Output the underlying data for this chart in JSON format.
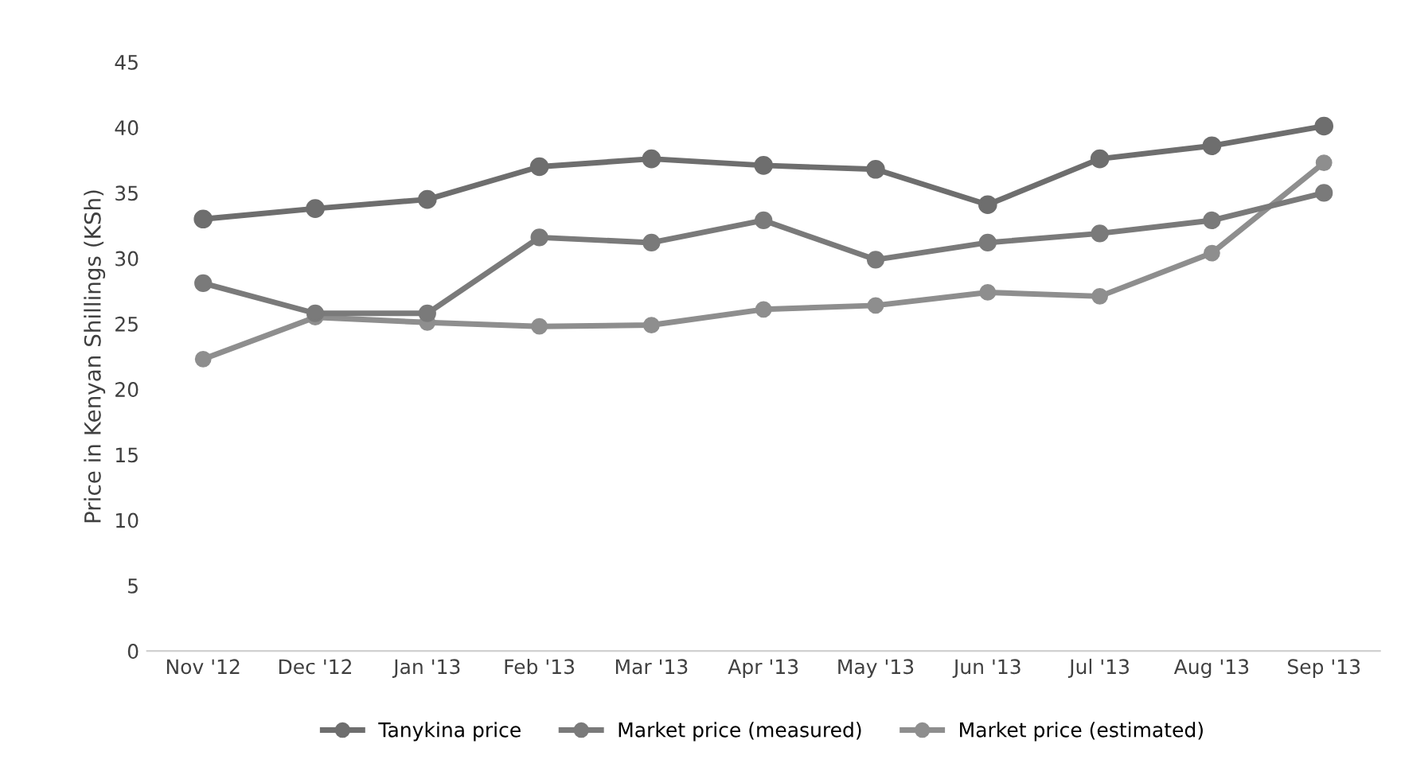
{
  "chart_data": {
    "type": "line",
    "ylabel": "Price in Kenyan Shillings (KSh)",
    "categories": [
      "Nov '12",
      "Dec '12",
      "Jan '13",
      "Feb '13",
      "Mar '13",
      "Apr '13",
      "May '13",
      "Jun '13",
      "Jul '13",
      "Aug '13",
      "Sep '13"
    ],
    "series": [
      {
        "name": "Tanykina price",
        "color": "#6e6e6e",
        "values": [
          33,
          33.8,
          34.5,
          37,
          37.6,
          37.1,
          36.8,
          34.1,
          37.6,
          38.6,
          40.1
        ]
      },
      {
        "name": "Market price (measured)",
        "color": "#7a7a7a",
        "values": [
          28.1,
          25.8,
          25.8,
          31.6,
          31.2,
          32.9,
          29.9,
          31.2,
          31.9,
          32.9,
          35
        ]
      },
      {
        "name": "Market price (estimated)",
        "color": "#8e8e8e",
        "values": [
          22.3,
          25.5,
          25.1,
          24.8,
          24.9,
          26.1,
          26.4,
          27.4,
          27.1,
          30.4,
          37.3
        ]
      }
    ],
    "ylim": [
      0,
      45
    ],
    "yticks": [
      0,
      5,
      10,
      15,
      20,
      25,
      30,
      35,
      40,
      45
    ],
    "grid": false,
    "legend": "bottom",
    "marker": "circle",
    "line_style": "solid"
  }
}
